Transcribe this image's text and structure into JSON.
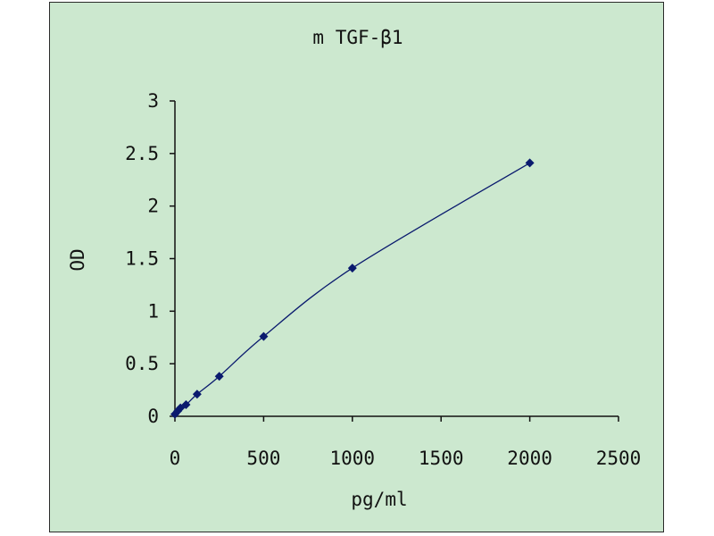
{
  "chart_data": {
    "type": "scatter",
    "title": "m TGF-β1",
    "xlabel": "pg/ml",
    "ylabel": "OD",
    "xlim": [
      0,
      2500
    ],
    "ylim": [
      0,
      3
    ],
    "x_ticks": [
      "0",
      "500",
      "1000",
      "1500",
      "2000",
      "2500"
    ],
    "y_ticks": [
      "0",
      "0.5",
      "1",
      "1.5",
      "2",
      "2.5",
      "3"
    ],
    "grid": false,
    "legend": "none",
    "trendline": "smooth",
    "series": [
      {
        "x": [
          0,
          15.6,
          31.2,
          62.5,
          125,
          250,
          500,
          1000,
          2000
        ],
        "y": [
          0.02,
          0.05,
          0.08,
          0.11,
          0.21,
          0.38,
          0.76,
          1.41,
          2.41
        ]
      }
    ],
    "colors": {
      "plot_background": "#cce8cf",
      "marker": "#0a1a6e",
      "line": "#0a1a6e",
      "axis": "#111111"
    }
  }
}
